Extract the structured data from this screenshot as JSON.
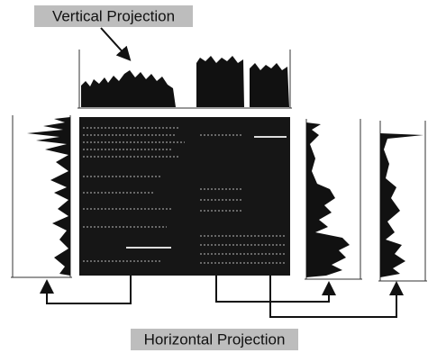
{
  "labels": {
    "vertical": "Vertical Projection",
    "horizontal": "Horizontal Projection"
  }
}
